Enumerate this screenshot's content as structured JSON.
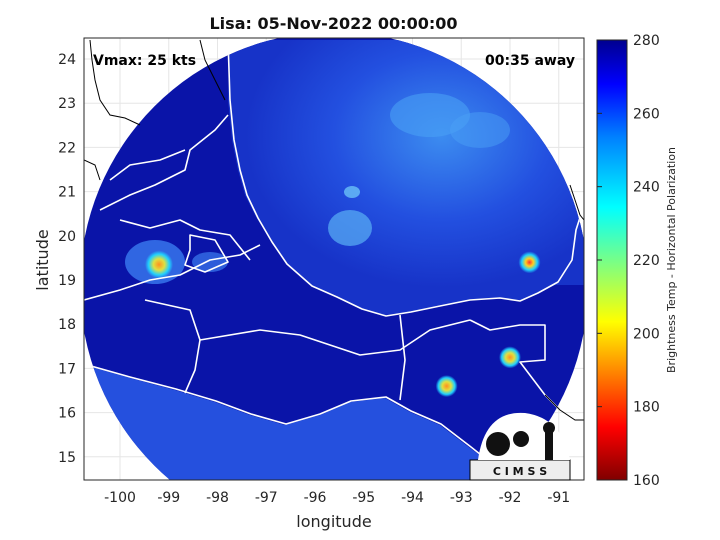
{
  "title": "Lisa: 05-Nov-2022 00:00:00",
  "annotations": {
    "vmax": "Vmax: 25 kts",
    "time_away": "00:35 away"
  },
  "axes": {
    "xlabel": "longitude",
    "ylabel": "latitude",
    "xticks": [
      "-100",
      "-99",
      "-98",
      "-97",
      "-96",
      "-95",
      "-94",
      "-93",
      "-92",
      "-91"
    ],
    "yticks": [
      "24",
      "23",
      "22",
      "21",
      "20",
      "19",
      "18",
      "17",
      "16",
      "15"
    ]
  },
  "colorbar": {
    "label": "Brightness Temp - Horizontal Polarization",
    "ticks": [
      "280",
      "260",
      "240",
      "220",
      "200",
      "180",
      "160"
    ],
    "stops": [
      "#800000",
      "#ff0000",
      "#ff8000",
      "#ffff00",
      "#00ffff",
      "#0080ff",
      "#0000ff",
      "#00008f"
    ]
  },
  "logo": {
    "text": "C I M S S"
  },
  "colors": {
    "swath_dark": "#0a14a8",
    "swath_mid": "#1e46e6",
    "swath_light": "#3c8cf0",
    "coast": "#ffffff",
    "outside_coast": "#000000"
  },
  "hotspots": [
    {
      "name": "veracruz-highland-spot",
      "lon": -91.6,
      "lat": 19.4,
      "color": "#c83050"
    },
    {
      "name": "chiapas-spot-a",
      "lon": -92.0,
      "lat": 17.25,
      "color": "#e0a030"
    },
    {
      "name": "chiapas-spot-b",
      "lon": -93.3,
      "lat": 16.6,
      "color": "#e0a030"
    },
    {
      "name": "mexico-city-spot",
      "lon": -99.2,
      "lat": 19.35,
      "color": "#e6b040"
    }
  ]
}
